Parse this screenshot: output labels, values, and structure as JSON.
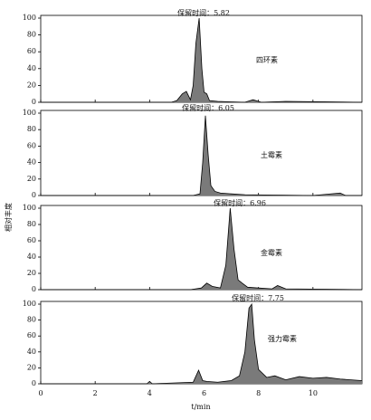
{
  "chart_data": [
    {
      "type": "area",
      "annotation": "保留时间：5.82",
      "compound": "四环素",
      "color": "#000000",
      "fill": "#7a7a7a",
      "x": [
        0,
        4.8,
        5.0,
        5.2,
        5.35,
        5.5,
        5.6,
        5.7,
        5.82,
        5.92,
        6.0,
        6.1,
        6.2,
        6.5,
        7.5,
        7.8,
        8.1,
        9,
        11.8
      ],
      "values": [
        0,
        0,
        2,
        10,
        13,
        3,
        20,
        70,
        100,
        40,
        12,
        10,
        2,
        1,
        0,
        3,
        0,
        1,
        0
      ],
      "xlim": [
        0,
        11.8
      ],
      "ylim": [
        0,
        100
      ],
      "yticks": [
        0,
        20,
        40,
        60,
        80,
        100
      ]
    },
    {
      "type": "area",
      "annotation": "保留时间：6.05",
      "compound": "土霉素",
      "color": "#000000",
      "fill": "#7a7a7a",
      "x": [
        0,
        5.6,
        5.85,
        5.95,
        6.05,
        6.15,
        6.25,
        6.4,
        6.6,
        7,
        7.5,
        10,
        11,
        11.2,
        11.8
      ],
      "values": [
        0,
        0,
        2,
        40,
        97,
        50,
        12,
        5,
        3,
        2,
        1,
        0,
        3,
        0,
        0
      ],
      "xlim": [
        0,
        11.8
      ],
      "ylim": [
        0,
        100
      ],
      "yticks": [
        0,
        20,
        40,
        60,
        80,
        100
      ]
    },
    {
      "type": "area",
      "annotation": "保留时间：6.96",
      "compound": "金霉素",
      "color": "#000000",
      "fill": "#7a7a7a",
      "ylabel": "相对丰度",
      "x": [
        0,
        5.5,
        5.9,
        6.1,
        6.3,
        6.6,
        6.8,
        6.96,
        7.1,
        7.25,
        7.4,
        7.6,
        8,
        8.5,
        8.7,
        9,
        11.8
      ],
      "values": [
        0,
        0,
        2,
        8,
        4,
        2,
        30,
        100,
        50,
        12,
        8,
        3,
        2,
        1,
        5,
        1,
        0
      ],
      "xlim": [
        0,
        11.8
      ],
      "ylim": [
        0,
        100
      ],
      "yticks": [
        0,
        20,
        40,
        60,
        80,
        100
      ]
    },
    {
      "type": "area",
      "annotation": "保留时间：7.75",
      "compound": "强力霉素",
      "color": "#000000",
      "fill": "#7a7a7a",
      "xlabel": "t/min",
      "x": [
        0,
        3.9,
        4.0,
        4.1,
        5.6,
        5.8,
        5.95,
        6.1,
        6.5,
        7.0,
        7.3,
        7.5,
        7.65,
        7.75,
        7.85,
        8.0,
        8.3,
        8.6,
        9.0,
        9.5,
        10,
        10.5,
        11,
        11.8
      ],
      "values": [
        0,
        0,
        3,
        0,
        2,
        17,
        4,
        3,
        2,
        4,
        10,
        40,
        95,
        100,
        55,
        18,
        8,
        10,
        5,
        9,
        7,
        8,
        6,
        4
      ],
      "xlim": [
        0,
        11.8
      ],
      "ylim": [
        0,
        100
      ],
      "yticks": [
        0,
        20,
        40,
        60,
        80,
        100
      ],
      "xticks": [
        0,
        2,
        4,
        6,
        8,
        10
      ]
    }
  ]
}
